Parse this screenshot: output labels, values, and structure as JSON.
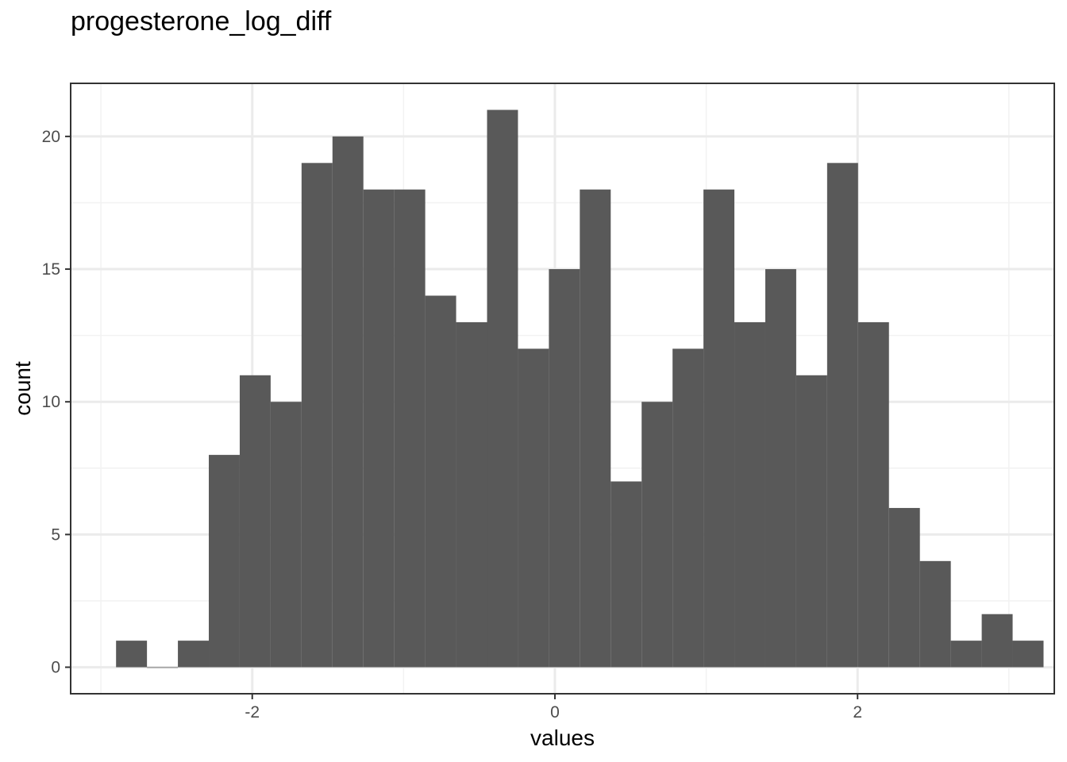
{
  "chart_data": {
    "type": "bar",
    "title": "progesterone_log_diff",
    "xlabel": "values",
    "ylabel": "count",
    "bin_width": 0.2043,
    "bins_start": -2.9,
    "counts": [
      1,
      0,
      1,
      8,
      11,
      10,
      19,
      20,
      18,
      18,
      14,
      13,
      21,
      12,
      15,
      18,
      7,
      10,
      12,
      18,
      13,
      15,
      11,
      19,
      13,
      6,
      4,
      1,
      2,
      1
    ],
    "xlim": [
      -3.2,
      3.3
    ],
    "ylim": [
      -1,
      22
    ],
    "x_ticks": [
      {
        "value": -2,
        "label": "-2"
      },
      {
        "value": 0,
        "label": "0"
      },
      {
        "value": 2,
        "label": "2"
      }
    ],
    "y_ticks": [
      {
        "value": 0,
        "label": "0"
      },
      {
        "value": 5,
        "label": "5"
      },
      {
        "value": 10,
        "label": "10"
      },
      {
        "value": 15,
        "label": "15"
      },
      {
        "value": 20,
        "label": "20"
      }
    ],
    "grid": true,
    "bar_color": "#595959",
    "grid_major_color": "#ebebeb",
    "grid_minor_color": "#f2f2f2",
    "panel_border_color": "#333333"
  }
}
